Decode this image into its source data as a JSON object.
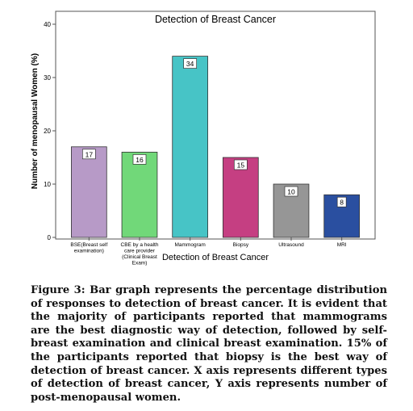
{
  "chart_data": {
    "type": "bar",
    "title": "Detection of Breast Cancer",
    "xlabel": "Detection of Breast Cancer",
    "ylabel": "Number of menopausal Women (%)",
    "ylim": [
      0,
      40
    ],
    "yticks": [
      0,
      10,
      20,
      30,
      40
    ],
    "grid": false,
    "categories": [
      [
        "BSE(Breast self",
        "examination)"
      ],
      [
        "CBE by a health",
        "care provider",
        "(Clinical Breast",
        "Exam)"
      ],
      [
        "Mammogram"
      ],
      [
        "Biopsy"
      ],
      [
        "Ultrasound"
      ],
      [
        "MRI"
      ]
    ],
    "values": [
      17,
      16,
      34,
      15,
      10,
      8
    ],
    "data_labels": [
      "17",
      "16",
      "34",
      "15",
      "10",
      "8"
    ],
    "colors": [
      "#b79ac7",
      "#71d879",
      "#47c4c6",
      "#c53f82",
      "#969696",
      "#2a4fa0"
    ]
  },
  "caption": {
    "figure_label": "Figure 3:",
    "text": "Bar graph represents the percentage distribution of responses to detection of breast cancer. It is evident that the majority of participants reported that mammograms are the best diagnostic way of detection, followed by self-breast examination and clinical breast examination. 15% of the participants reported that biopsy is the best way of detection of breast cancer. X axis represents different types of detection of breast cancer, Y axis represents number of post-menopausal women."
  }
}
